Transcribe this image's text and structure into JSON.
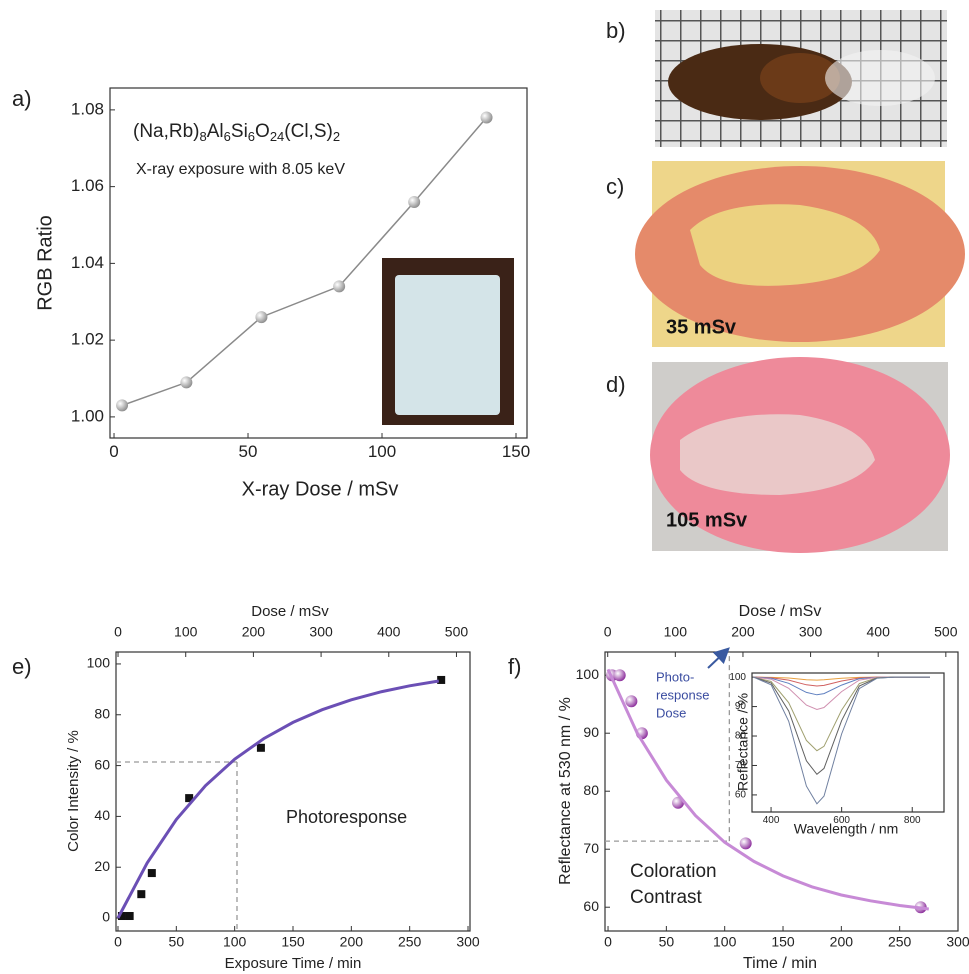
{
  "panel_labels": [
    "a)",
    "b)",
    "c)",
    "d)",
    "e)",
    "f)"
  ],
  "photo_captions": [
    "35 mSv",
    "105 mSv"
  ],
  "chart_data": [
    {
      "type": "line",
      "xlabel": "X-ray Dose / mSv",
      "ylabel": "RGB Ratio",
      "formula_parts": [
        "(Na,Rb)",
        "8",
        "Al",
        "6",
        "Si",
        "6",
        "O",
        "24",
        "(Cl,S)",
        "2"
      ],
      "annotation": "X-ray exposure with 8.05 keV",
      "x": [
        3,
        27,
        55,
        84,
        112,
        139
      ],
      "series": [
        {
          "values": [
            1.003,
            1.009,
            1.026,
            1.034,
            1.056,
            1.078
          ],
          "color": "#8a8a8a",
          "marker": "sphere",
          "line": true
        }
      ],
      "xlim": [
        -1.5,
        154.1
      ],
      "xticks": [
        0,
        50,
        100,
        150
      ],
      "ylim": [
        0.9945,
        1.0857
      ],
      "yticks": [
        {
          "value": 1.0,
          "label": "1.00"
        },
        {
          "value": 1.02,
          "label": "1.02"
        },
        {
          "value": 1.04,
          "label": "1.04"
        },
        {
          "value": 1.06,
          "label": "1.06"
        },
        {
          "value": 1.08,
          "label": "1.08"
        }
      ]
    },
    {
      "type": "scatter",
      "xlabel": "Exposure Time / min",
      "x2label": "Dose / mSv",
      "ylabel": "Color Intensity / %",
      "annotation": "Photoresponse",
      "series": [
        {
          "x": [
            3.4,
            10,
            20,
            29,
            61,
            122.5,
            277
          ],
          "values": [
            0.8,
            0.8,
            9.4,
            17.7,
            47.2,
            67,
            93.7
          ],
          "color": "#111111",
          "marker": "square"
        },
        {
          "x": [
            0,
            25,
            50,
            75,
            100,
            125,
            150,
            175,
            200,
            225,
            250,
            275
          ],
          "values": [
            0,
            21.7,
            38.8,
            52.1,
            62.5,
            70.6,
            77.0,
            82.0,
            85.9,
            89.0,
            91.4,
            93.3
          ],
          "color": "#6b4fb5",
          "line": true
        }
      ],
      "guide": {
        "x": 102,
        "y": 61.4
      },
      "xlim": [
        -1.7,
        301.7
      ],
      "xticks": [
        0,
        50,
        100,
        150,
        200,
        250,
        300
      ],
      "x2lim": [
        -3,
        520
      ],
      "x2ticks": [
        0,
        100,
        200,
        300,
        400,
        500
      ],
      "ylim": [
        -5.1,
        104.7
      ],
      "yticks": [
        0,
        20,
        40,
        60,
        80,
        100
      ]
    },
    {
      "type": "scatter",
      "xlabel": "Time / min",
      "x2label": "Dose / mSv",
      "ylabel": "Reflectance at 530 nm / %",
      "annotation_lines": [
        "Photo-",
        "response",
        "Dose"
      ],
      "annotation2_lines": [
        "Coloration",
        "Contrast"
      ],
      "series": [
        {
          "x": [
            3.4,
            10,
            20,
            29,
            60,
            118,
            268
          ],
          "values": [
            100,
            100,
            95.5,
            90,
            78,
            71,
            60
          ],
          "color": "#8a2a9a",
          "marker": "sphere"
        },
        {
          "x": [
            0,
            25,
            50,
            75,
            100,
            125,
            150,
            175,
            200,
            225,
            250,
            275
          ],
          "values": [
            101,
            90.0,
            81.9,
            75.8,
            71.2,
            67.9,
            65.4,
            63.5,
            62.1,
            61.1,
            60.3,
            59.7
          ],
          "color": "#c78ad6",
          "line": true
        }
      ],
      "guide": {
        "x": 104,
        "y": 71.4
      },
      "xlim": [
        -2.6,
        300
      ],
      "xticks": [
        0,
        50,
        100,
        150,
        200,
        250,
        300
      ],
      "x2lim": [
        -4,
        518
      ],
      "x2ticks": [
        0,
        100,
        200,
        300,
        400,
        500
      ],
      "ylim": [
        55.9,
        104
      ],
      "yticks": [
        60,
        70,
        80,
        90,
        100
      ]
    },
    {
      "type": "line",
      "xlabel": "Wavelength / nm",
      "ylabel": "Reflectance / %",
      "x": [
        350,
        400,
        450,
        500,
        530,
        550,
        600,
        650,
        700,
        750,
        850
      ],
      "series": [
        {
          "values": [
            100,
            99.9,
            99.7,
            99.1,
            99,
            99.1,
            99.6,
            99.9,
            100,
            100,
            100
          ],
          "color": "#e8a040",
          "line": true
        },
        {
          "values": [
            100,
            99.8,
            99,
            97.4,
            97,
            97.2,
            98.7,
            99.7,
            100,
            100,
            100
          ],
          "color": "#d06060",
          "line": true
        },
        {
          "values": [
            100,
            99.6,
            97.9,
            94.8,
            94,
            94.4,
            97.3,
            99.5,
            99.9,
            100,
            100
          ],
          "color": "#6080c0",
          "line": true
        },
        {
          "values": [
            100,
            99.3,
            96.2,
            90.5,
            89,
            89.7,
            95.1,
            99,
            99.9,
            100,
            100
          ],
          "color": "#d090b0",
          "line": true
        },
        {
          "values": [
            100,
            98.5,
            91.3,
            78.5,
            75,
            76.5,
            88.8,
            97.8,
            99.8,
            100,
            100
          ],
          "color": "#a0a070",
          "line": true
        },
        {
          "values": [
            100,
            98,
            88.5,
            71.6,
            67,
            69,
            85.2,
            97,
            99.7,
            100,
            100
          ],
          "color": "#606060",
          "line": true
        },
        {
          "values": [
            100,
            97.4,
            85,
            63,
            57,
            59.6,
            80.7,
            96.1,
            99.6,
            100,
            100
          ],
          "color": "#7080a0",
          "line": true
        }
      ],
      "xlim": [
        346,
        890
      ],
      "xticks": [
        400,
        600,
        800
      ],
      "ylim": [
        54.2,
        101.4
      ],
      "yticks": [
        60,
        70,
        80,
        90,
        100
      ]
    }
  ]
}
